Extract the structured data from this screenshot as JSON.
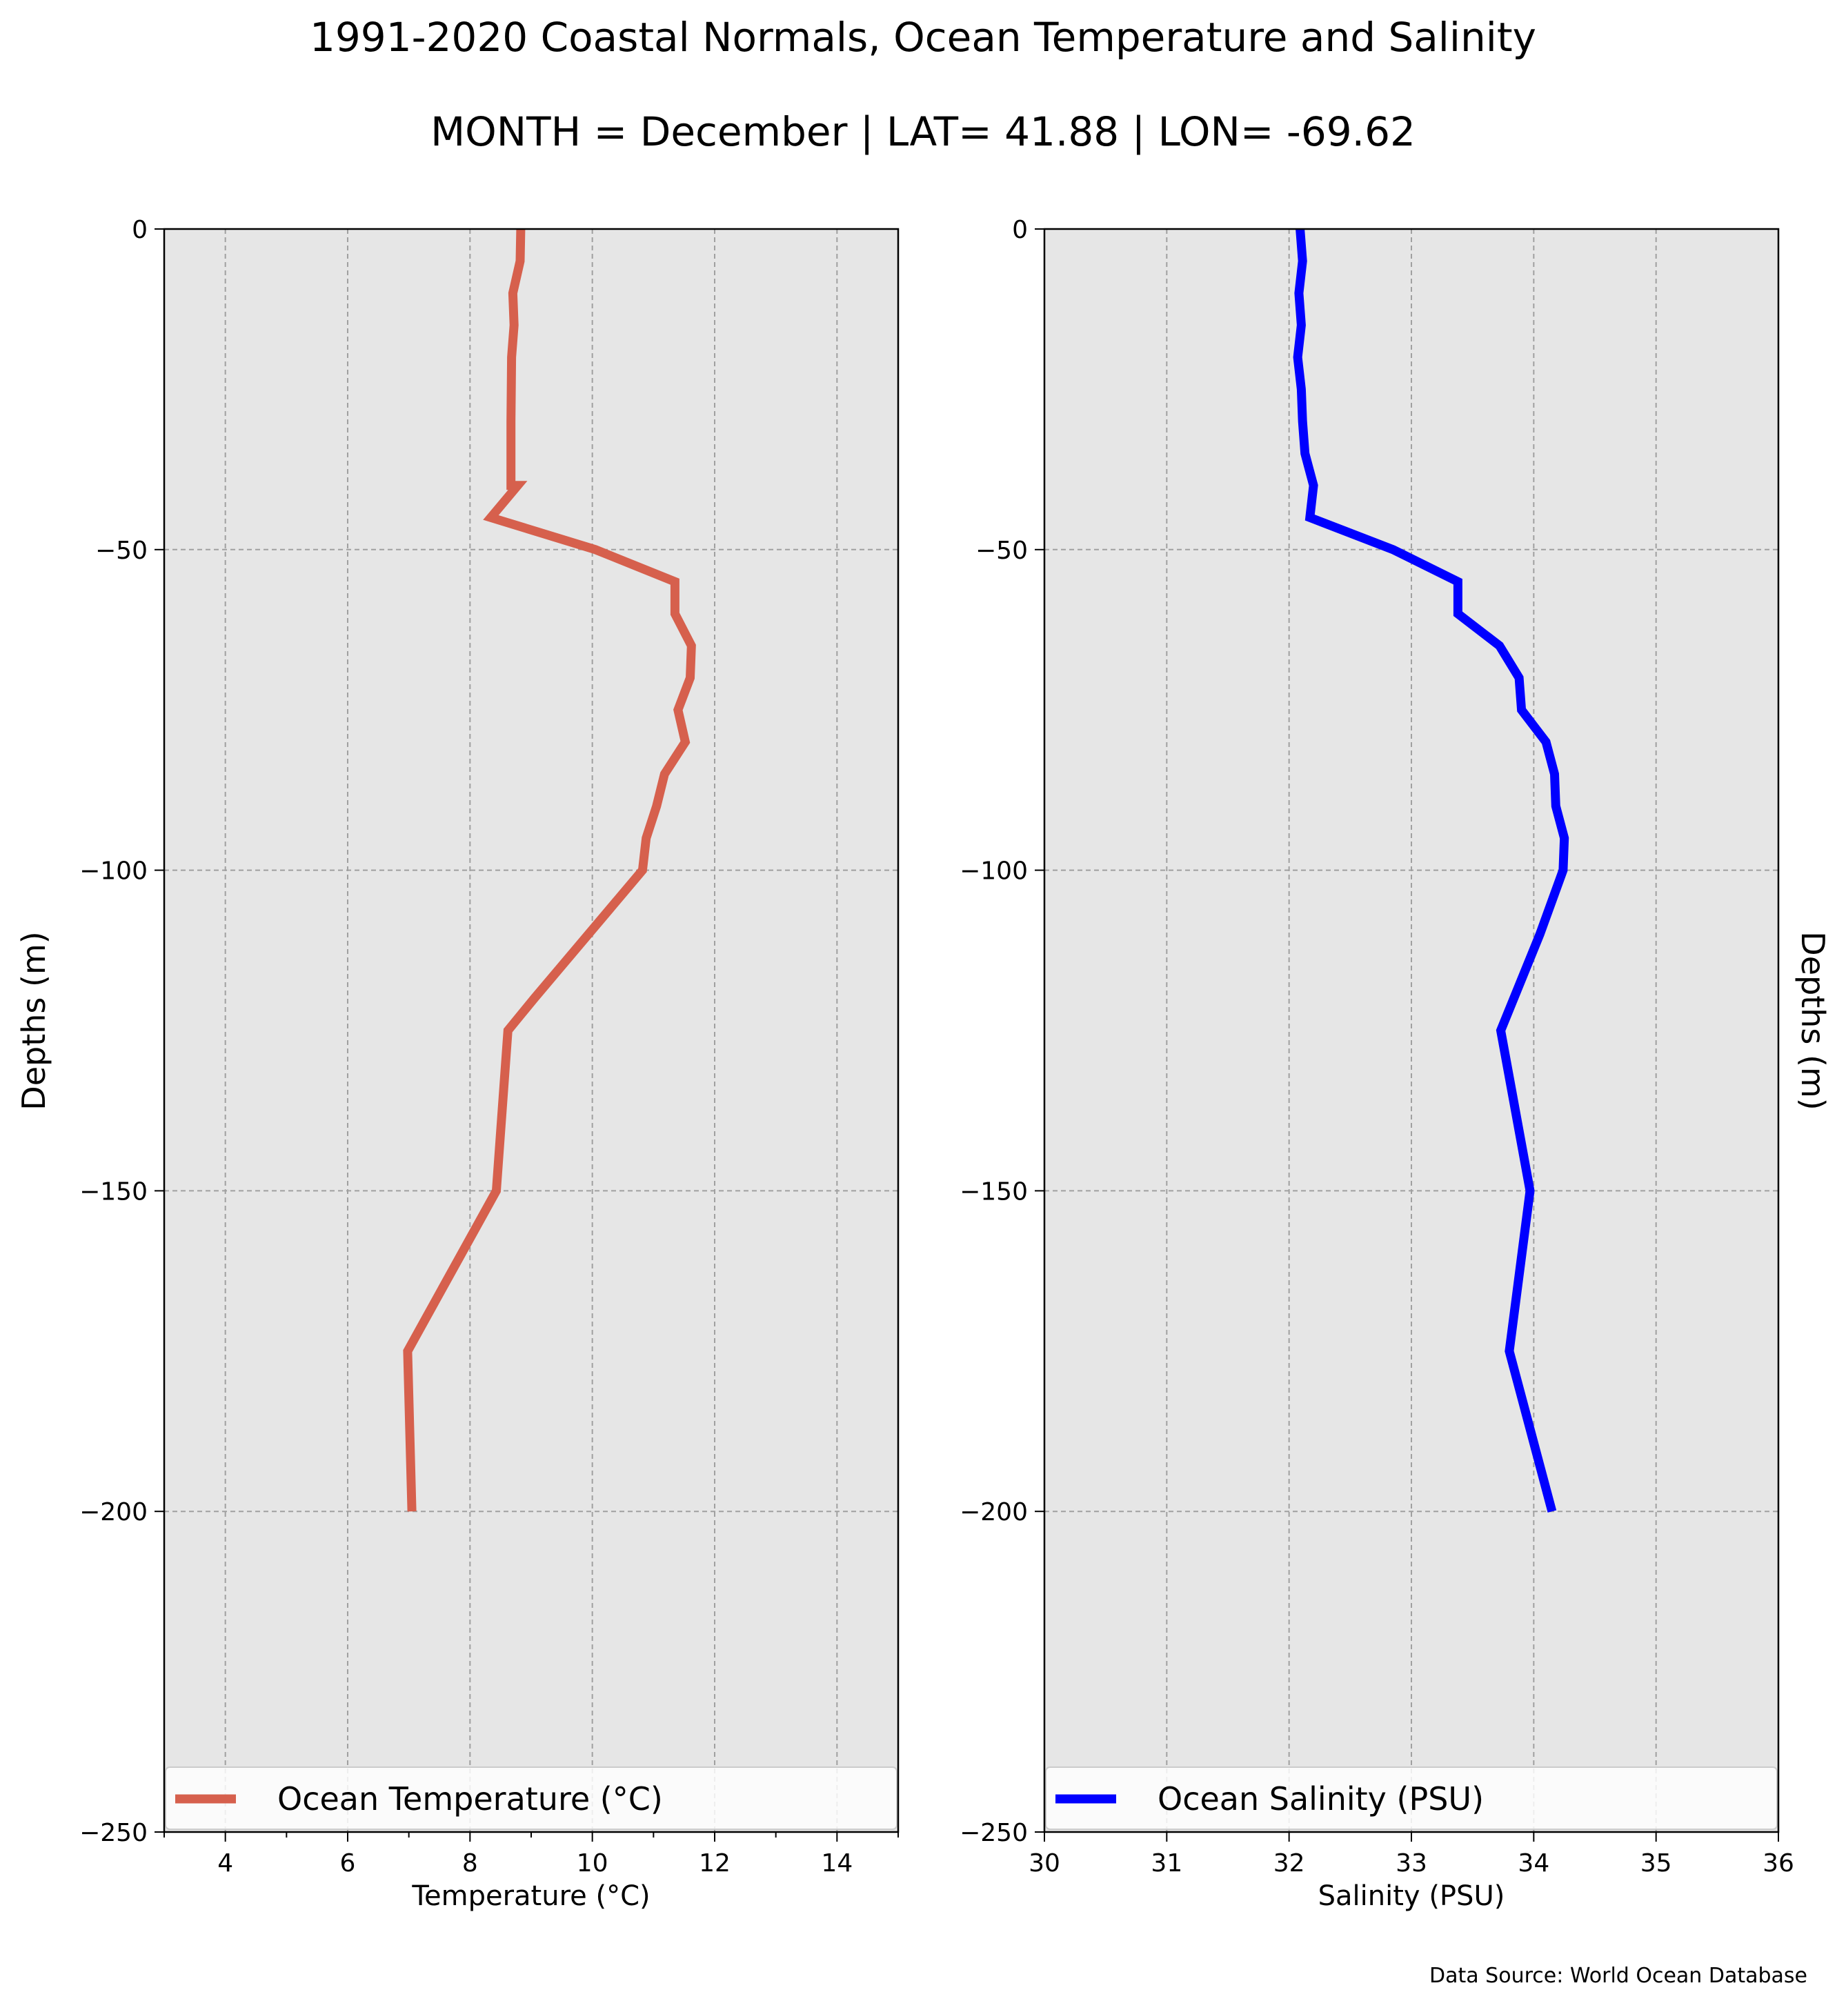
{
  "figure": {
    "title": "1991-2020 Coastal Normals, Ocean Temperature and Salinity",
    "subtitle": "MONTH = December | LAT= 41.88 | LON= -69.62",
    "ylabel_left": "Depths (m)",
    "ylabel_right": "Depths (m)",
    "source": "Data Source: World Ocean Database",
    "background": "#e6e6e6",
    "grid": true
  },
  "chart_data": [
    {
      "type": "line",
      "xlabel": "Temperature ($^\\circ$C)",
      "xlabel_display": "Temperature (°C)",
      "ylabel": "Depths (m)",
      "xlim": [
        3,
        15
      ],
      "ylim": [
        -250,
        0
      ],
      "xticks": [
        4,
        6,
        8,
        10,
        12,
        14
      ],
      "yticks": [
        0,
        -50,
        -100,
        -150,
        -200,
        -250
      ],
      "legend_loc": "lower center",
      "series": [
        {
          "name": "Ocean Temperature ($^\\circ$C)",
          "name_display": "Ocean Temperature (°C)",
          "color": "#d6604d",
          "x": [
            8.83,
            8.82,
            8.7,
            8.72,
            8.68,
            8.67,
            8.67,
            8.67,
            8.78,
            8.34,
            10.05,
            11.35,
            11.35,
            11.62,
            11.6,
            11.4,
            11.52,
            11.18,
            11.05,
            10.88,
            10.82,
            9.05,
            8.62,
            8.43,
            6.98,
            7.05
          ],
          "y": [
            0,
            -5,
            -10,
            -15,
            -20,
            -30,
            -35,
            -40,
            -40,
            -45,
            -50,
            -55,
            -60,
            -65,
            -70,
            -75,
            -80,
            -85,
            -90,
            -95,
            -100,
            -120,
            -125,
            -150,
            -175,
            -200
          ]
        }
      ]
    },
    {
      "type": "line",
      "xlabel": "Salinity (PSU)",
      "ylabel": "Depths (m)",
      "xlim": [
        30,
        36
      ],
      "ylim": [
        -250,
        0
      ],
      "xticks": [
        30,
        31,
        32,
        33,
        34,
        35,
        36
      ],
      "yticks": [
        0,
        -50,
        -100,
        -150,
        -200,
        -250
      ],
      "legend_loc": "lower center",
      "series": [
        {
          "name": "Ocean Salinity (PSU)",
          "color": "#0000ff",
          "x": [
            32.09,
            32.11,
            32.08,
            32.1,
            32.07,
            32.1,
            32.11,
            32.13,
            32.2,
            32.17,
            32.85,
            33.38,
            33.38,
            33.72,
            33.88,
            33.9,
            34.1,
            34.17,
            34.18,
            34.25,
            34.24,
            34.05,
            33.73,
            33.97,
            33.8,
            34.15
          ],
          "y": [
            0,
            -5,
            -10,
            -15,
            -20,
            -25,
            -30,
            -35,
            -40,
            -45,
            -50,
            -55,
            -60,
            -65,
            -70,
            -75,
            -80,
            -85,
            -90,
            -95,
            -100,
            -110,
            -125,
            -150,
            -175,
            -200
          ]
        }
      ]
    }
  ]
}
